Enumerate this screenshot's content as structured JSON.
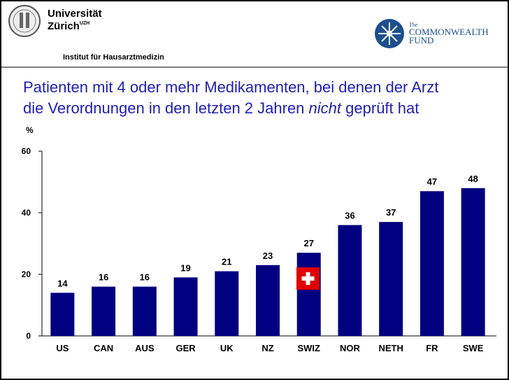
{
  "header": {
    "university": [
      "Universität",
      "Zürich"
    ],
    "university_sup": "UZH",
    "institute": "Institut für Hausarztmedizin",
    "partner": [
      "The",
      "COMMONWEALTH",
      "FUND"
    ]
  },
  "chart_data": {
    "type": "bar",
    "title": [
      "Patienten mit 4 oder mehr Medikamenten, bei denen der Arzt",
      "die Verordnungen in den letzten 2 Jahren",
      "nicht",
      "geprüft hat"
    ],
    "y_label": "%",
    "categories": [
      "US",
      "CAN",
      "AUS",
      "GER",
      "UK",
      "NZ",
      "SWIZ",
      "NOR",
      "NETH",
      "FR",
      "SWE"
    ],
    "values": [
      14,
      16,
      16,
      19,
      21,
      23,
      27,
      36,
      37,
      47,
      48
    ],
    "color": "#000080",
    "ylim": [
      0,
      60
    ],
    "yticks": [
      0,
      20,
      40,
      60
    ],
    "grid": false
  }
}
